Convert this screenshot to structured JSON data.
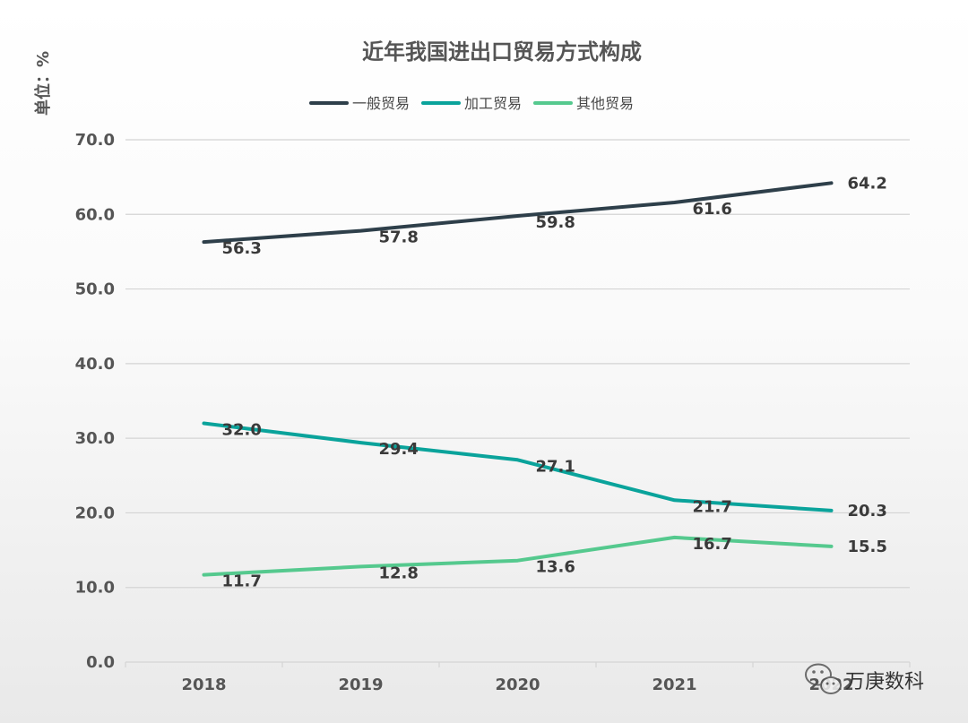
{
  "chart_data": {
    "type": "line",
    "title": "近年我国进出口贸易方式构成",
    "ylabel": "单位：%",
    "categories": [
      "2018",
      "2019",
      "2020",
      "2021",
      "2022"
    ],
    "ylim": [
      0,
      70
    ],
    "yticks": [
      "0.0",
      "10.0",
      "20.0",
      "30.0",
      "40.0",
      "50.0",
      "60.0",
      "70.0"
    ],
    "grid": true,
    "legend_position": "top",
    "series": [
      {
        "name": "一般贸易",
        "color": "#2e3f4a",
        "values": [
          56.3,
          57.8,
          59.8,
          61.6,
          64.2
        ],
        "labels": [
          "56.3",
          "57.8",
          "59.8",
          "61.6",
          "64.2"
        ]
      },
      {
        "name": "加工贸易",
        "color": "#0aa39b",
        "values": [
          32.0,
          29.4,
          27.1,
          21.7,
          20.3
        ],
        "labels": [
          "32.0",
          "29.4",
          "27.1",
          "21.7",
          "20.3"
        ]
      },
      {
        "name": "其他贸易",
        "color": "#55c98e",
        "values": [
          11.7,
          12.8,
          13.6,
          16.7,
          15.5
        ],
        "labels": [
          "11.7",
          "12.8",
          "13.6",
          "16.7",
          "15.5"
        ]
      }
    ]
  },
  "watermark": {
    "icon": "wechat-icon",
    "text": "万庚数科"
  }
}
